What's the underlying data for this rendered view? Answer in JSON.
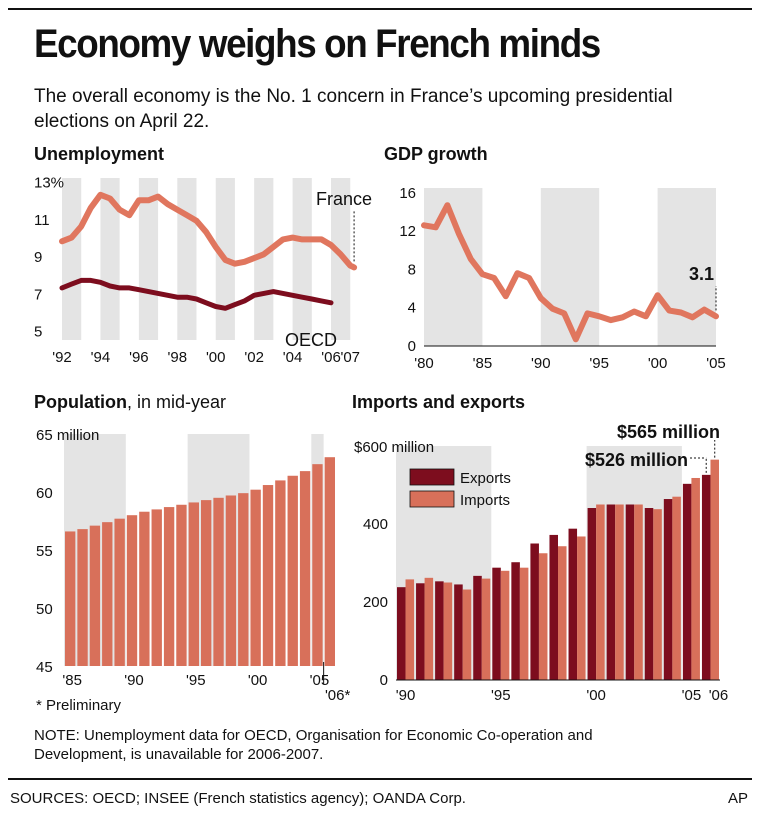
{
  "headline": "Economy weighs on French minds",
  "subhead": "The overall economy is the No. 1 concern in France’s upcoming presidential elections on April 22.",
  "note": "NOTE: Unemployment data for OECD, Organisation for Economic Co-operation and Development, is unavailable for 2006-2007.",
  "sources": "SOURCES: OECD; INSEE (French statistics agency); OANDA Corp.",
  "credit": "AP",
  "colors": {
    "france": "#e0765e",
    "oecd": "#7d0d1e",
    "exports": "#7d0d1e",
    "imports": "#d8705a",
    "band": "#e4e4e4"
  },
  "chart_data": [
    {
      "type": "line",
      "title": "Unemployment",
      "ytick_labels": [
        "13%",
        "11",
        "9",
        "7",
        "5"
      ],
      "yticks": [
        13,
        11,
        9,
        7,
        5
      ],
      "ylim": [
        4.5,
        13.2
      ],
      "xlim": [
        1992,
        2007.3
      ],
      "xticks": [
        1992,
        1994,
        1996,
        1998,
        2000,
        2002,
        2004,
        2006,
        2007
      ],
      "xtick_labels": [
        "'92",
        "'94",
        "'96",
        "'98",
        "'00",
        "'02",
        "'04",
        "'06",
        "'07"
      ],
      "series": [
        {
          "name": "France",
          "x": [
            1992,
            1992.5,
            1993,
            1993.5,
            1994,
            1994.5,
            1995,
            1995.5,
            1996,
            1996.5,
            1997,
            1997.5,
            1998,
            1998.5,
            1999,
            1999.5,
            2000,
            2000.5,
            2001,
            2001.5,
            2002,
            2002.5,
            2003,
            2003.5,
            2004,
            2004.5,
            2005,
            2005.5,
            2006,
            2006.5,
            2007,
            2007.2
          ],
          "y": [
            9.8,
            10.0,
            10.6,
            11.6,
            12.3,
            12.1,
            11.5,
            11.2,
            12.0,
            12.0,
            12.2,
            11.8,
            11.5,
            11.2,
            10.9,
            10.3,
            9.5,
            8.8,
            8.6,
            8.7,
            8.9,
            9.1,
            9.5,
            9.9,
            10.0,
            9.9,
            9.9,
            9.9,
            9.6,
            9.1,
            8.5,
            8.4
          ]
        },
        {
          "name": "OECD",
          "x": [
            1992,
            1992.5,
            1993,
            1993.5,
            1994,
            1994.5,
            1995,
            1995.5,
            1996,
            1996.5,
            1997,
            1997.5,
            1998,
            1998.5,
            1999,
            1999.5,
            2000,
            2000.5,
            2001,
            2001.5,
            2002,
            2002.5,
            2003,
            2003.5,
            2004,
            2004.5,
            2005,
            2005.5,
            2006
          ],
          "y": [
            7.3,
            7.5,
            7.7,
            7.7,
            7.6,
            7.4,
            7.3,
            7.3,
            7.2,
            7.1,
            7.0,
            6.9,
            6.8,
            6.8,
            6.7,
            6.5,
            6.3,
            6.2,
            6.4,
            6.6,
            6.9,
            7.0,
            7.1,
            7.0,
            6.9,
            6.8,
            6.7,
            6.6,
            6.5
          ]
        }
      ],
      "labels": {
        "france": "France",
        "oecd": "OECD"
      },
      "shaded_bands": [
        [
          1992,
          1993
        ],
        [
          1994,
          1995
        ],
        [
          1996,
          1997
        ],
        [
          1998,
          1999
        ],
        [
          2000,
          2001
        ],
        [
          2002,
          2003
        ],
        [
          2004,
          2005
        ],
        [
          2006,
          2007
        ]
      ]
    },
    {
      "type": "line",
      "title": "GDP growth",
      "yticks": [
        0,
        4,
        8,
        12,
        16
      ],
      "ytick_labels": [
        "0",
        "4",
        "8",
        "12",
        "16"
      ],
      "ylim": [
        0,
        16.5
      ],
      "xlim": [
        1980,
        2005
      ],
      "xticks": [
        1980,
        1985,
        1990,
        1995,
        2000,
        2005
      ],
      "xtick_labels": [
        "'80",
        "'85",
        "'90",
        "'95",
        "'00",
        "'05"
      ],
      "series": [
        {
          "name": "GDP growth",
          "x": [
            1980,
            1981,
            1982,
            1983,
            1984,
            1985,
            1986,
            1987,
            1988,
            1989,
            1990,
            1991,
            1992,
            1993,
            1994,
            1995,
            1996,
            1997,
            1998,
            1999,
            2000,
            2001,
            2002,
            2003,
            2004,
            2005
          ],
          "y": [
            12.6,
            12.4,
            14.7,
            11.7,
            9.1,
            7.5,
            7.1,
            5.2,
            7.6,
            7.1,
            5.0,
            3.9,
            3.4,
            0.7,
            3.4,
            3.1,
            2.7,
            3.0,
            3.6,
            3.1,
            5.3,
            3.7,
            3.5,
            3.0,
            3.8,
            3.1
          ]
        }
      ],
      "annotation": {
        "x": 2005,
        "y": 3.1,
        "text": "3.1"
      },
      "shaded_bands": [
        [
          1980,
          1985
        ],
        [
          1990,
          1995
        ],
        [
          2000,
          2005
        ]
      ]
    },
    {
      "type": "bar",
      "title": "Population",
      "subtitle": ", in mid-year",
      "unit_label": "65 million",
      "yticks": [
        45,
        50,
        55,
        60
      ],
      "ytick_labels": [
        "45",
        "50",
        "55",
        "60"
      ],
      "ylim": [
        45,
        65
      ],
      "categories": [
        1985,
        1986,
        1987,
        1988,
        1989,
        1990,
        1991,
        1992,
        1993,
        1994,
        1995,
        1996,
        1997,
        1998,
        1999,
        2000,
        2001,
        2002,
        2003,
        2004,
        2005,
        2006
      ],
      "values": [
        56.6,
        56.8,
        57.1,
        57.4,
        57.7,
        58.0,
        58.3,
        58.5,
        58.7,
        58.9,
        59.1,
        59.3,
        59.5,
        59.7,
        59.9,
        60.2,
        60.6,
        61.0,
        61.4,
        61.8,
        62.4,
        63.0
      ],
      "xtick_labels": [
        {
          "x": 1985,
          "t": "'85"
        },
        {
          "x": 1990,
          "t": "'90"
        },
        {
          "x": 1995,
          "t": "'95"
        },
        {
          "x": 2000,
          "t": "'00"
        },
        {
          "x": 2005,
          "t": "'05"
        }
      ],
      "last_label": "'06*",
      "footnote": "* Preliminary",
      "shaded_bands": [
        [
          1985,
          1990
        ],
        [
          1995,
          2000
        ],
        [
          2005,
          2006
        ]
      ]
    },
    {
      "type": "bar",
      "title": "Imports and exports",
      "unit_label": "$600 million",
      "yticks": [
        0,
        200,
        400
      ],
      "ytick_labels": [
        "0",
        "200",
        "400"
      ],
      "ylim": [
        0,
        600
      ],
      "categories": [
        1990,
        1991,
        1992,
        1993,
        1994,
        1995,
        1996,
        1997,
        1998,
        1999,
        2000,
        2001,
        2002,
        2003,
        2004,
        2005,
        2006
      ],
      "series": [
        {
          "name": "Exports",
          "values": [
            238,
            248,
            253,
            245,
            267,
            288,
            302,
            350,
            372,
            388,
            441,
            450,
            450,
            441,
            464,
            503,
            526
          ]
        },
        {
          "name": "Imports",
          "values": [
            258,
            262,
            250,
            232,
            260,
            280,
            288,
            325,
            343,
            368,
            450,
            450,
            450,
            438,
            470,
            518,
            565
          ]
        }
      ],
      "xtick_labels": [
        {
          "x": 1990,
          "t": "'90"
        },
        {
          "x": 1995,
          "t": "'95"
        },
        {
          "x": 2000,
          "t": "'00"
        },
        {
          "x": 2005,
          "t": "'05"
        },
        {
          "x": 2006,
          "t": "'06"
        }
      ],
      "annotations": [
        {
          "text": "$565 million",
          "series": "Imports"
        },
        {
          "text": "$526 million",
          "series": "Exports"
        }
      ],
      "shaded_bands": [
        [
          1990,
          1995
        ],
        [
          2000,
          2005
        ]
      ]
    }
  ]
}
